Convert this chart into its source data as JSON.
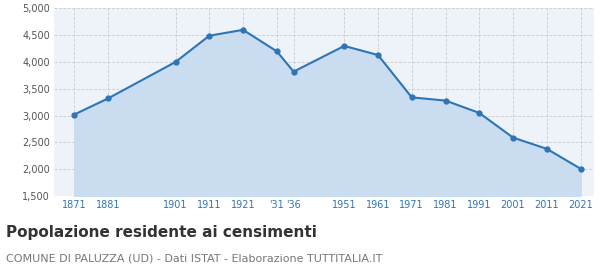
{
  "years": [
    1871,
    1881,
    1901,
    1911,
    1921,
    1931,
    1936,
    1951,
    1961,
    1971,
    1981,
    1991,
    2001,
    2011,
    2021
  ],
  "population": [
    3020,
    3320,
    4000,
    4490,
    4600,
    4200,
    3820,
    4300,
    4130,
    3340,
    3280,
    3050,
    2590,
    2380,
    2010
  ],
  "ylim": [
    1500,
    5000
  ],
  "yticks": [
    1500,
    2000,
    2500,
    3000,
    3500,
    4000,
    4500,
    5000
  ],
  "line_color": "#2E75B6",
  "fill_color": "#C9DCF0",
  "marker_color": "#2E75B6",
  "bg_color": "#EEF3FA",
  "grid_color": "#CCCCCC",
  "title": "Popolazione residente ai censimenti",
  "subtitle": "COMUNE DI PALUZZA (UD) - Dati ISTAT - Elaborazione TUTTITALIA.IT",
  "title_fontsize": 11,
  "subtitle_fontsize": 8,
  "xtick_positions": [
    1871,
    1881,
    1901,
    1911,
    1921,
    1931,
    1936,
    1951,
    1961,
    1971,
    1981,
    1991,
    2001,
    2011,
    2021
  ],
  "xtick_labels": [
    "1871",
    "1881",
    "1901",
    "1911",
    "1921",
    "'31",
    "'36",
    "1951",
    "1961",
    "1971",
    "1981",
    "1991",
    "2001",
    "2011",
    "2021"
  ],
  "xlim_left": 1865,
  "xlim_right": 2025
}
